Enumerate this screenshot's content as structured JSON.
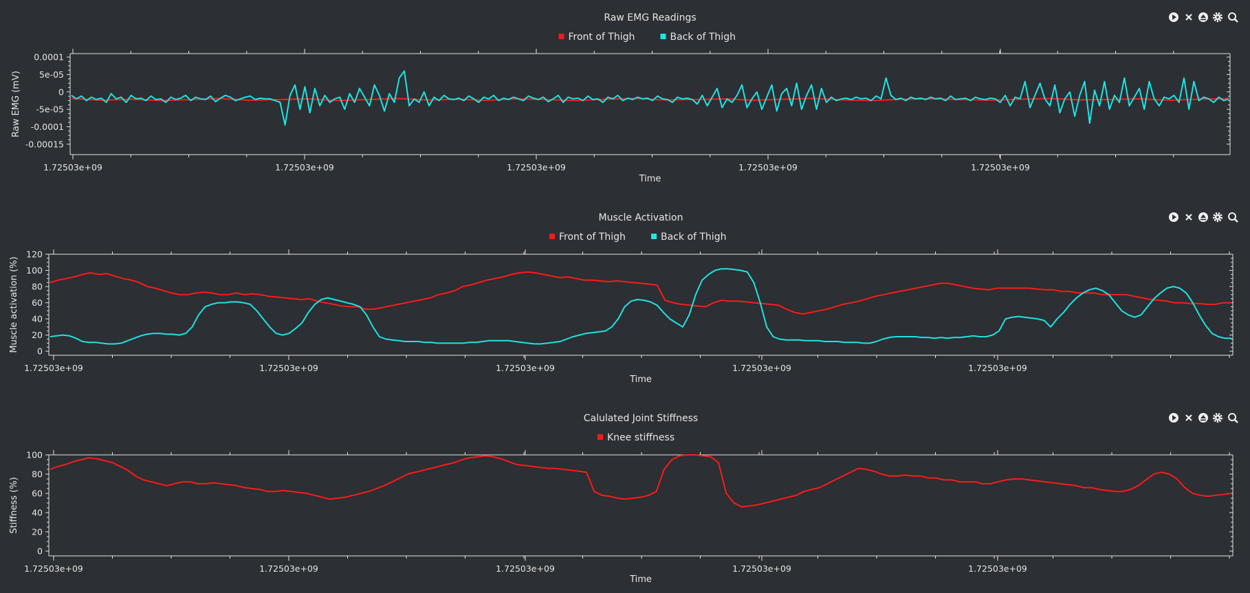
{
  "colors": {
    "background": "#2c2f33",
    "axis": "#e6e6e6",
    "red": "#ff1a1a",
    "cyan": "#19e6e6"
  },
  "toolbar_icons": [
    "play-icon",
    "close-icon",
    "eject-icon",
    "gear-icon",
    "zoom-icon"
  ],
  "chart_data": [
    {
      "type": "line",
      "title": "Raw EMG Readings",
      "xlabel": "Time",
      "ylabel": "Raw EMG (mV)",
      "ylim": [
        -0.00018,
        0.00011
      ],
      "yticks": [
        0.0001,
        5e-05,
        0,
        -5e-05,
        -0.0001,
        -0.00015
      ],
      "yticklabels": [
        "0.0001",
        "5e-05",
        "0",
        "-5e-05",
        "-0.0001",
        "-0.00015"
      ],
      "xticklabels": [
        "1.72503e+09",
        "1.72503e+09",
        "1.72503e+09",
        "1.72503e+09",
        "1.72503e+09"
      ],
      "legend": "top-center",
      "series": [
        {
          "name": "Front of Thigh",
          "color": "#ff1a1a",
          "values": [
            -1.9e-05,
            -2.4e-05,
            -2.1e-05,
            -2.5e-05,
            -2.2e-05,
            -1.9e-05,
            -2.4e-05,
            -2.2e-05,
            -2e-05,
            -2.5e-05,
            -2.2e-05,
            -1.9e-05,
            -2.3e-05,
            -2.1e-05,
            -2.4e-05,
            -2e-05,
            -2.2e-05,
            -2.5e-05,
            -2.1e-05,
            -1.9e-05,
            -2.3e-05,
            -2.2e-05,
            -2e-05,
            -2.4e-05,
            -2.1e-05,
            -1.9e-05,
            -2.3e-05,
            -2.5e-05,
            -2.1e-05,
            -2e-05,
            -2.2e-05,
            -2.4e-05,
            -2.1e-05,
            -1.9e-05,
            -2.3e-05,
            -2.2e-05,
            -2e-05,
            -2.4e-05,
            -2.1e-05,
            -1.9e-05
          ]
        },
        {
          "name": "Back of Thigh",
          "color": "#19e6e6",
          "values": [
            -1e-05,
            -2e-05,
            -1.2e-05,
            -2.5e-05,
            -1.5e-05,
            -2.2e-05,
            -1.8e-05,
            -3e-05,
            -5e-06,
            -2e-05,
            -1.5e-05,
            -3e-05,
            -1e-05,
            -2e-05,
            -1.8e-05,
            -2.5e-05,
            -1.2e-05,
            -2.2e-05,
            -2e-05,
            -3e-05,
            -1.5e-05,
            -2.2e-05,
            -1.8e-05,
            -1e-05,
            -2.5e-05,
            -1.5e-05,
            -2e-05,
            -2.2e-05,
            -1.2e-05,
            -2.8e-05,
            -1.8e-05,
            -1e-05,
            -1.5e-05,
            -2.5e-05,
            -2e-05,
            -1.5e-05,
            -1.2e-05,
            -2.2e-05,
            -1.8e-05,
            -2e-05,
            -2e-05,
            -2.5e-05,
            -3e-05,
            -9.5e-05,
            -1e-05,
            2e-05,
            -5e-05,
            1.5e-05,
            -6e-05,
            1e-05,
            -4e-05,
            -1e-05,
            -3e-05,
            -2e-05,
            -1.5e-05,
            -5e-05,
            -5e-06,
            -3e-05,
            1e-05,
            -1.5e-05,
            -4e-05,
            2e-05,
            -1e-05,
            -5.5e-05,
            -5e-06,
            -3e-05,
            4e-05,
            6e-05,
            -4e-05,
            -2e-05,
            -3e-05,
            0.0,
            -4e-05,
            -1.5e-05,
            -2.5e-05,
            -1e-05,
            -2e-05,
            -2.2e-05,
            -1.8e-05,
            -2.5e-05,
            -1.2e-05,
            -2e-05,
            -3e-05,
            -1.5e-05,
            -2e-05,
            -1e-05,
            -2.5e-05,
            -1.8e-05,
            -2.2e-05,
            -1.5e-05,
            -2e-05,
            -2.5e-05,
            -1.2e-05,
            -1.8e-05,
            -2.2e-05,
            -1.5e-05,
            -2.8e-05,
            -2e-05,
            -1e-05,
            -3e-05,
            -1.5e-05,
            -2e-05,
            -1.8e-05,
            -2.5e-05,
            -1.2e-05,
            -2.2e-05,
            -2e-05,
            -3e-05,
            -1.5e-05,
            -2e-05,
            -1e-05,
            -2.5e-05,
            -1.8e-05,
            -2.2e-05,
            -1.5e-05,
            -2e-05,
            -1.8e-05,
            -2.5e-05,
            -1.2e-05,
            -2e-05,
            -2.2e-05,
            -3e-05,
            -1.5e-05,
            -2e-05,
            -1.8e-05,
            -2.2e-05,
            -3.5e-05,
            -1e-05,
            -4e-05,
            -1.5e-05,
            1e-05,
            -4.5e-05,
            -2e-05,
            -3e-05,
            -1e-05,
            2e-05,
            -4.5e-05,
            -2e-05,
            0.0,
            -5e-05,
            -1.5e-05,
            2e-05,
            -5.5e-05,
            -5e-06,
            1e-05,
            -4e-05,
            2.5e-05,
            -5e-05,
            -1e-05,
            2e-05,
            -5e-05,
            1e-05,
            -3e-05,
            -1.5e-05,
            -2.5e-05,
            -2e-05,
            -1.8e-05,
            -2.2e-05,
            -1.5e-05,
            -2e-05,
            -1.8e-05,
            -2.5e-05,
            -1.2e-05,
            -2e-05,
            4e-05,
            -1e-05,
            -2.2e-05,
            -1.8e-05,
            -2.5e-05,
            -1.5e-05,
            -2e-05,
            -1.8e-05,
            -2.2e-05,
            -1.5e-05,
            -2e-05,
            -1.8e-05,
            -2.5e-05,
            -1.2e-05,
            -2.2e-05,
            -2e-05,
            -1.8e-05,
            -2.5e-05,
            -1.5e-05,
            -2e-05,
            -2.2e-05,
            -1.8e-05,
            -2e-05,
            -3e-05,
            -1e-05,
            -4e-05,
            -1.5e-05,
            -2e-05,
            3e-05,
            -4.5e-05,
            -1e-05,
            2.5e-05,
            -2e-05,
            -4e-05,
            2e-05,
            -6e-05,
            -2e-05,
            0.0,
            -7e-05,
            -1e-05,
            3e-05,
            -9e-05,
            5e-06,
            -4e-05,
            3e-05,
            -5e-05,
            -1e-05,
            -3e-05,
            4e-05,
            -4e-05,
            -1.5e-05,
            1e-05,
            -5e-05,
            3e-05,
            -2e-05,
            -4e-05,
            -1.5e-05,
            -2e-05,
            -1e-05,
            -3e-05,
            4e-05,
            -5e-05,
            3e-05,
            -2.5e-05,
            -1.5e-05,
            -2e-05,
            -3e-05,
            -1.5e-05,
            -2.5e-05,
            -2e-05
          ]
        }
      ]
    },
    {
      "type": "line",
      "title": "Muscle Activation",
      "xlabel": "Time",
      "ylabel": "Muscle activation (%)",
      "ylim": [
        -5,
        120
      ],
      "yticks": [
        0,
        20,
        40,
        60,
        80,
        100,
        120
      ],
      "yticklabels": [
        "0",
        "20",
        "40",
        "60",
        "80",
        "100",
        "120"
      ],
      "xticklabels": [
        "1.72503e+09",
        "1.72503e+09",
        "1.72503e+09",
        "1.72503e+09",
        "1.72503e+09"
      ],
      "legend": "top-center",
      "series": [
        {
          "name": "Front of Thigh",
          "color": "#ff1a1a",
          "values": [
            85,
            88,
            90,
            92,
            95,
            97,
            95,
            96,
            93,
            90,
            88,
            85,
            80,
            78,
            75,
            72,
            70,
            70,
            72,
            73,
            72,
            70,
            70,
            72,
            70,
            71,
            70,
            68,
            67,
            66,
            65,
            64,
            65,
            62,
            60,
            58,
            56,
            55,
            55,
            52,
            52,
            54,
            56,
            58,
            60,
            62,
            64,
            66,
            70,
            72,
            75,
            80,
            82,
            85,
            88,
            90,
            92,
            95,
            97,
            98,
            97,
            95,
            93,
            91,
            92,
            90,
            88,
            88,
            87,
            86,
            87,
            86,
            85,
            84,
            83,
            82,
            63,
            60,
            58,
            57,
            56,
            55,
            60,
            63,
            62,
            62,
            61,
            60,
            59,
            58,
            57,
            52,
            48,
            46,
            48,
            50,
            52,
            55,
            58,
            60,
            62,
            65,
            68,
            70,
            72,
            74,
            76,
            78,
            80,
            82,
            84,
            84,
            82,
            80,
            78,
            77,
            76,
            78,
            78,
            78,
            78,
            78,
            77,
            76,
            76,
            74,
            74,
            72,
            72,
            72,
            70,
            70,
            70,
            70,
            68,
            66,
            64,
            63,
            62,
            60,
            60,
            59,
            59,
            58,
            58,
            60,
            60
          ]
        },
        {
          "name": "Back of Thigh",
          "color": "#19e6e6",
          "values": [
            18,
            19,
            20,
            19,
            16,
            12,
            11,
            11,
            10,
            9,
            9,
            10,
            13,
            16,
            19,
            21,
            22,
            22,
            21,
            21,
            20,
            22,
            30,
            45,
            55,
            58,
            60,
            60,
            61,
            61,
            60,
            58,
            50,
            40,
            30,
            22,
            20,
            22,
            28,
            35,
            48,
            58,
            64,
            66,
            64,
            62,
            60,
            58,
            55,
            45,
            30,
            18,
            15,
            14,
            13,
            12,
            12,
            12,
            11,
            11,
            10,
            10,
            10,
            10,
            10,
            11,
            11,
            12,
            13,
            13,
            13,
            13,
            12,
            11,
            10,
            9,
            9,
            10,
            11,
            12,
            15,
            18,
            20,
            22,
            23,
            24,
            25,
            30,
            40,
            55,
            62,
            64,
            63,
            61,
            57,
            48,
            40,
            35,
            30,
            45,
            70,
            88,
            95,
            100,
            102,
            102,
            101,
            100,
            98,
            85,
            60,
            30,
            18,
            15,
            14,
            14,
            14,
            13,
            13,
            13,
            12,
            12,
            12,
            11,
            11,
            11,
            10,
            10,
            12,
            15,
            17,
            18,
            18,
            18,
            18,
            17,
            17,
            16,
            17,
            16,
            17,
            17,
            18,
            19,
            18,
            18,
            20,
            25,
            40,
            42,
            43,
            42,
            41,
            40,
            38,
            30,
            40,
            48,
            58,
            66,
            72,
            76,
            78,
            75,
            70,
            60,
            50,
            45,
            42,
            45,
            55,
            65,
            72,
            78,
            80,
            78,
            72,
            60,
            45,
            32,
            22,
            18,
            16,
            16
          ]
        }
      ]
    },
    {
      "type": "line",
      "title": "Calulated Joint Stiffness",
      "xlabel": "Time",
      "ylabel": "Stiffness (%)",
      "ylim": [
        -5,
        100
      ],
      "yticks": [
        0,
        20,
        40,
        60,
        80,
        100
      ],
      "yticklabels": [
        "0",
        "20",
        "40",
        "60",
        "80",
        "100"
      ],
      "xticklabels": [
        "1.72503e+09",
        "1.72503e+09",
        "1.72503e+09",
        "1.72503e+09",
        "1.72503e+09"
      ],
      "legend": "top-center",
      "series": [
        {
          "name": "Knee stiffness",
          "color": "#ff1a1a",
          "values": [
            85,
            88,
            90,
            93,
            95,
            97,
            96,
            94,
            92,
            88,
            84,
            78,
            74,
            72,
            70,
            68,
            70,
            72,
            72,
            70,
            70,
            71,
            70,
            69,
            68,
            66,
            65,
            64,
            62,
            62,
            63,
            62,
            61,
            60,
            58,
            56,
            54,
            55,
            56,
            58,
            60,
            62,
            65,
            68,
            72,
            76,
            80,
            82,
            84,
            86,
            88,
            90,
            92,
            95,
            97,
            98,
            99,
            98,
            96,
            93,
            90,
            89,
            88,
            87,
            86,
            86,
            85,
            84,
            83,
            82,
            62,
            58,
            57,
            55,
            54,
            55,
            56,
            58,
            62,
            85,
            95,
            99,
            100,
            100,
            99,
            98,
            92,
            60,
            50,
            46,
            47,
            48,
            50,
            52,
            54,
            56,
            58,
            62,
            64,
            66,
            70,
            74,
            78,
            82,
            86,
            85,
            83,
            80,
            78,
            78,
            79,
            78,
            78,
            76,
            76,
            74,
            74,
            72,
            72,
            72,
            70,
            70,
            72,
            74,
            75,
            75,
            74,
            73,
            72,
            71,
            70,
            69,
            68,
            66,
            66,
            64,
            63,
            62,
            62,
            64,
            68,
            74,
            80,
            82,
            80,
            75,
            66,
            60,
            58,
            57,
            58,
            59,
            60
          ]
        }
      ]
    }
  ]
}
